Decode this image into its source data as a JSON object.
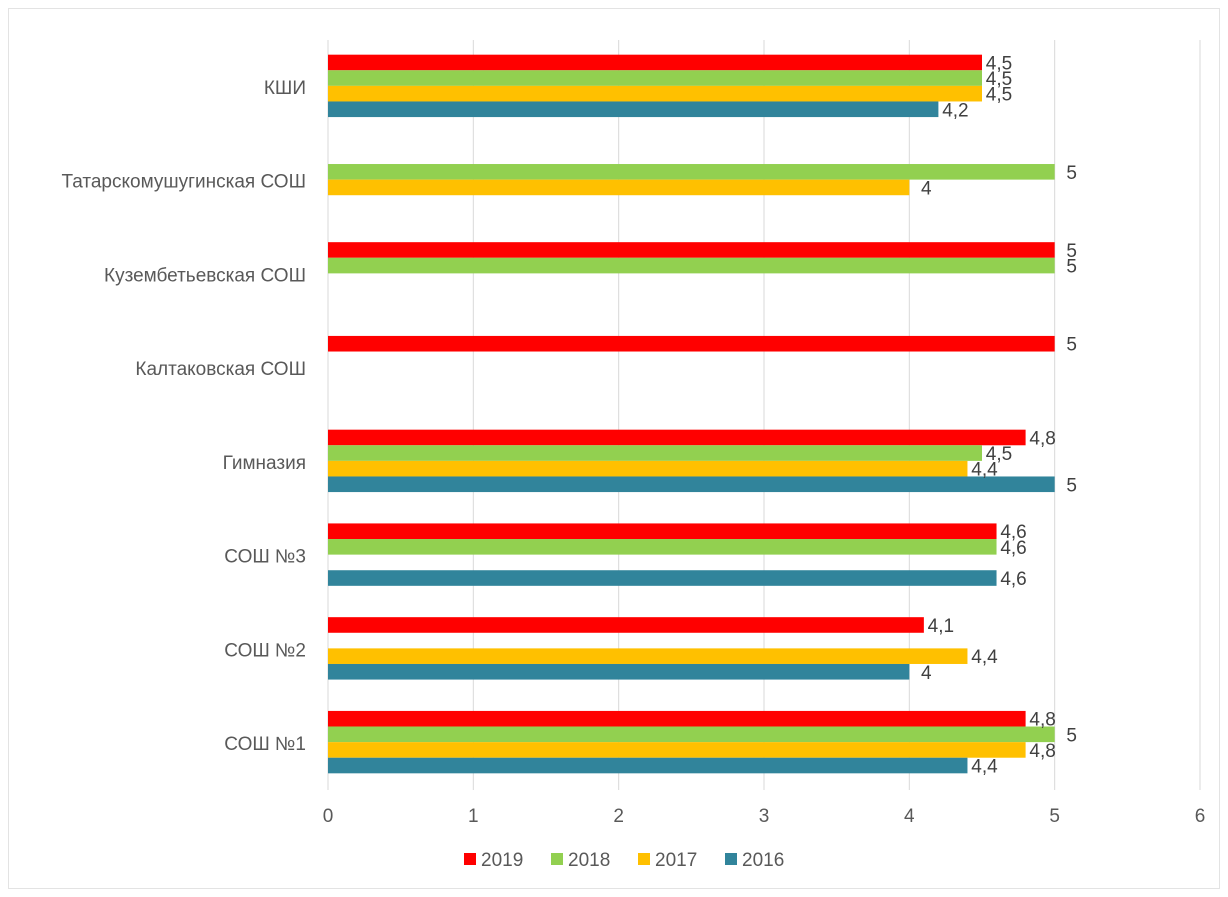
{
  "chart_data": {
    "type": "bar",
    "orientation": "horizontal",
    "title": "",
    "xlabel": "",
    "ylabel": "",
    "xlim": [
      0,
      6
    ],
    "x_ticks": [
      "0",
      "1",
      "2",
      "3",
      "4",
      "5",
      "6"
    ],
    "grid": "vertical",
    "legend_position": "bottom",
    "categories": [
      "КШИ",
      "Татарскомушугинская СОШ",
      "Куземб​етьевская СОШ",
      "Калтаковская СОШ",
      "Гимназия",
      "СОШ №3",
      "СОШ №2",
      "СОШ №1"
    ],
    "series": [
      {
        "name": "2019",
        "color": "#ff0000",
        "values": [
          4.5,
          null,
          5,
          5,
          4.8,
          4.6,
          4.1,
          4.8
        ],
        "labels": [
          "4,5",
          "",
          "5",
          "5",
          "4,8",
          "4,6",
          "4,1",
          "4,8"
        ]
      },
      {
        "name": "2018",
        "color": "#92d050",
        "values": [
          4.5,
          5,
          5,
          null,
          4.5,
          4.6,
          null,
          5
        ],
        "labels": [
          "4,5",
          "5",
          "5",
          "",
          "4,5",
          "4,6",
          "",
          "5"
        ]
      },
      {
        "name": "2017",
        "color": "#ffc000",
        "values": [
          4.5,
          4,
          null,
          null,
          4.4,
          null,
          4.4,
          4.8
        ],
        "labels": [
          "4,5",
          "4",
          "",
          "",
          "4,4",
          "",
          "4,4",
          "4,8"
        ]
      },
      {
        "name": "2016",
        "color": "#31849b",
        "values": [
          4.2,
          null,
          null,
          null,
          5,
          4.6,
          4,
          4.4
        ],
        "labels": [
          "4,2",
          "",
          "",
          "",
          "5",
          "4,6",
          "4",
          "4,4"
        ]
      }
    ]
  }
}
